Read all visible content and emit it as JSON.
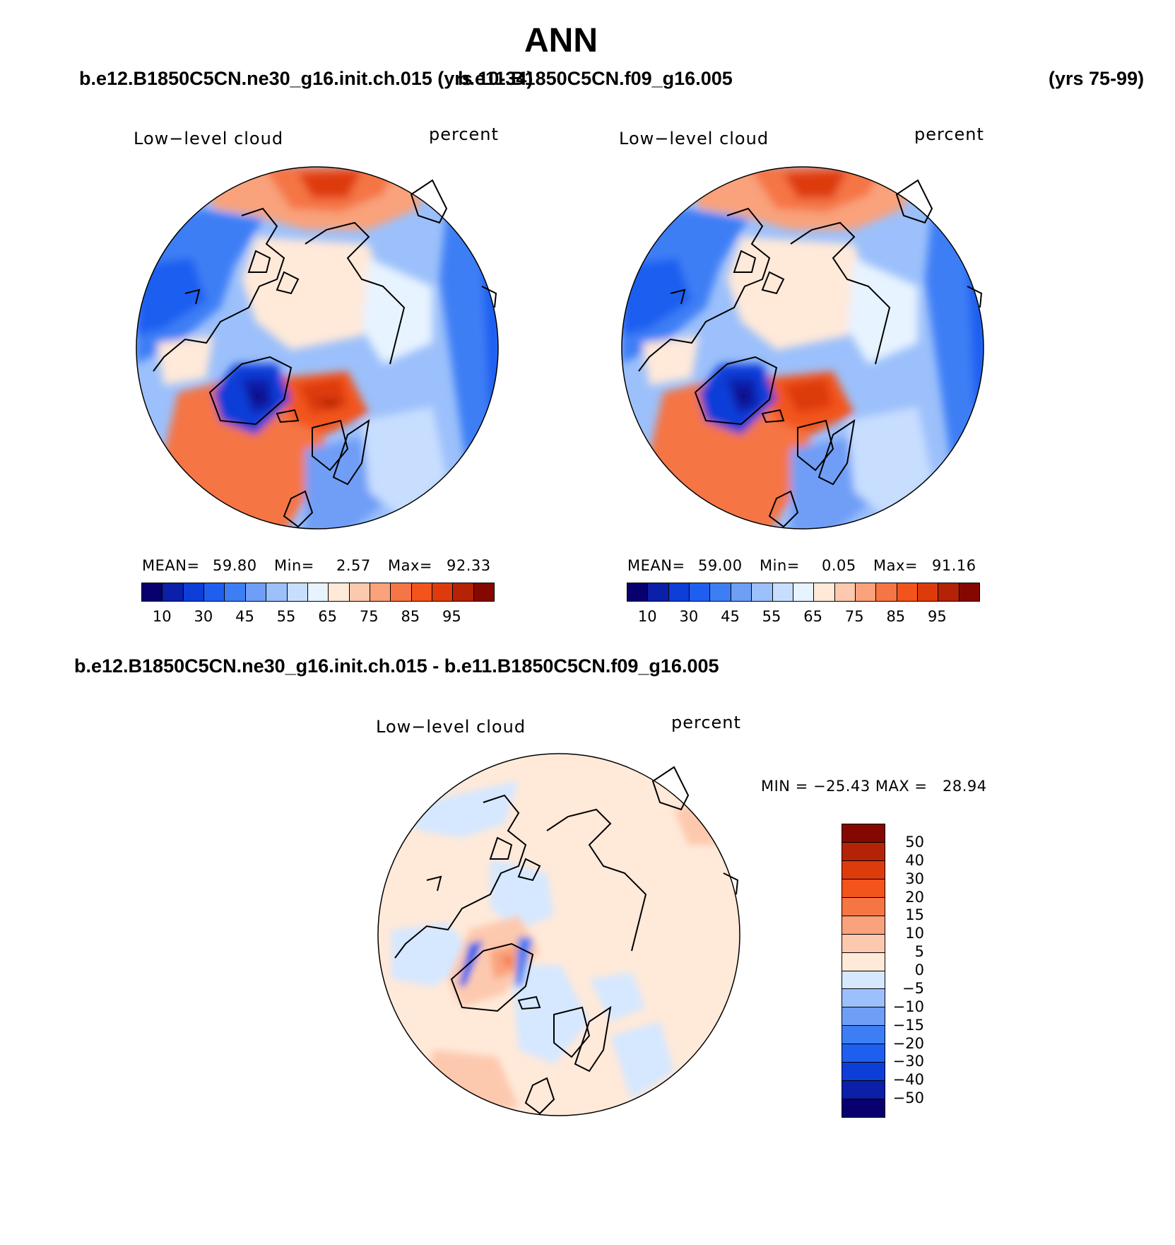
{
  "figure": {
    "title": "ANN",
    "top_left_case": "b.e12.B1850C5CN.ne30_g16.init.ch.015 (yrs 10-34)",
    "top_right_case": "b.e11.B1850C5CN.f09_g16.005",
    "top_right_years": "(yrs 75-99)",
    "diff_case": "b.e12.B1850C5CN.ne30_g16.init.ch.015 - b.e11.B1850C5CN.f09_g16.005"
  },
  "colors": {
    "scale": [
      "#08006e",
      "#0b1fa8",
      "#0e3ed8",
      "#1f5ff0",
      "#3d7ef5",
      "#6f9ef6",
      "#9cc0fb",
      "#c8deff",
      "#e7f3ff",
      "#ffe9d9",
      "#fdc9ae",
      "#f9a27c",
      "#f57545",
      "#f2541c",
      "#de3b0c",
      "#b42306",
      "#850800"
    ],
    "diff_scale": [
      "#08006e",
      "#0b1fa8",
      "#0e3ed8",
      "#1f5ff0",
      "#3d7ef5",
      "#6f9ef6",
      "#9cc0fb",
      "#d5e8ff",
      "#ffe9d9",
      "#fdc9ae",
      "#f9a27c",
      "#f57545",
      "#f2541c",
      "#de3b0c",
      "#b42306",
      "#850800"
    ]
  },
  "panels": [
    {
      "variable": "Low−level cloud",
      "units": "percent",
      "mean_label": "MEAN=",
      "mean": "59.80",
      "min_label": "Min=",
      "min": "2.57",
      "max_label": "Max=",
      "max": "92.33",
      "colorbar_ticks": [
        "10",
        "30",
        "45",
        "55",
        "65",
        "75",
        "85",
        "95"
      ]
    },
    {
      "variable": "Low−level cloud",
      "units": "percent",
      "mean_label": "MEAN=",
      "mean": "59.00",
      "min_label": "Min=",
      "min": "0.05",
      "max_label": "Max=",
      "max": "91.16",
      "colorbar_ticks": [
        "10",
        "30",
        "45",
        "55",
        "65",
        "75",
        "85",
        "95"
      ]
    }
  ],
  "diff_panel": {
    "variable": "Low−level cloud",
    "units": "percent",
    "minmax": "MIN = −25.43 MAX =   28.94",
    "colorbar_ticks": [
      "50",
      "40",
      "30",
      "20",
      "15",
      "10",
      "5",
      "0",
      "−5",
      "−10",
      "−15",
      "−20",
      "−30",
      "−40",
      "−50"
    ]
  }
}
